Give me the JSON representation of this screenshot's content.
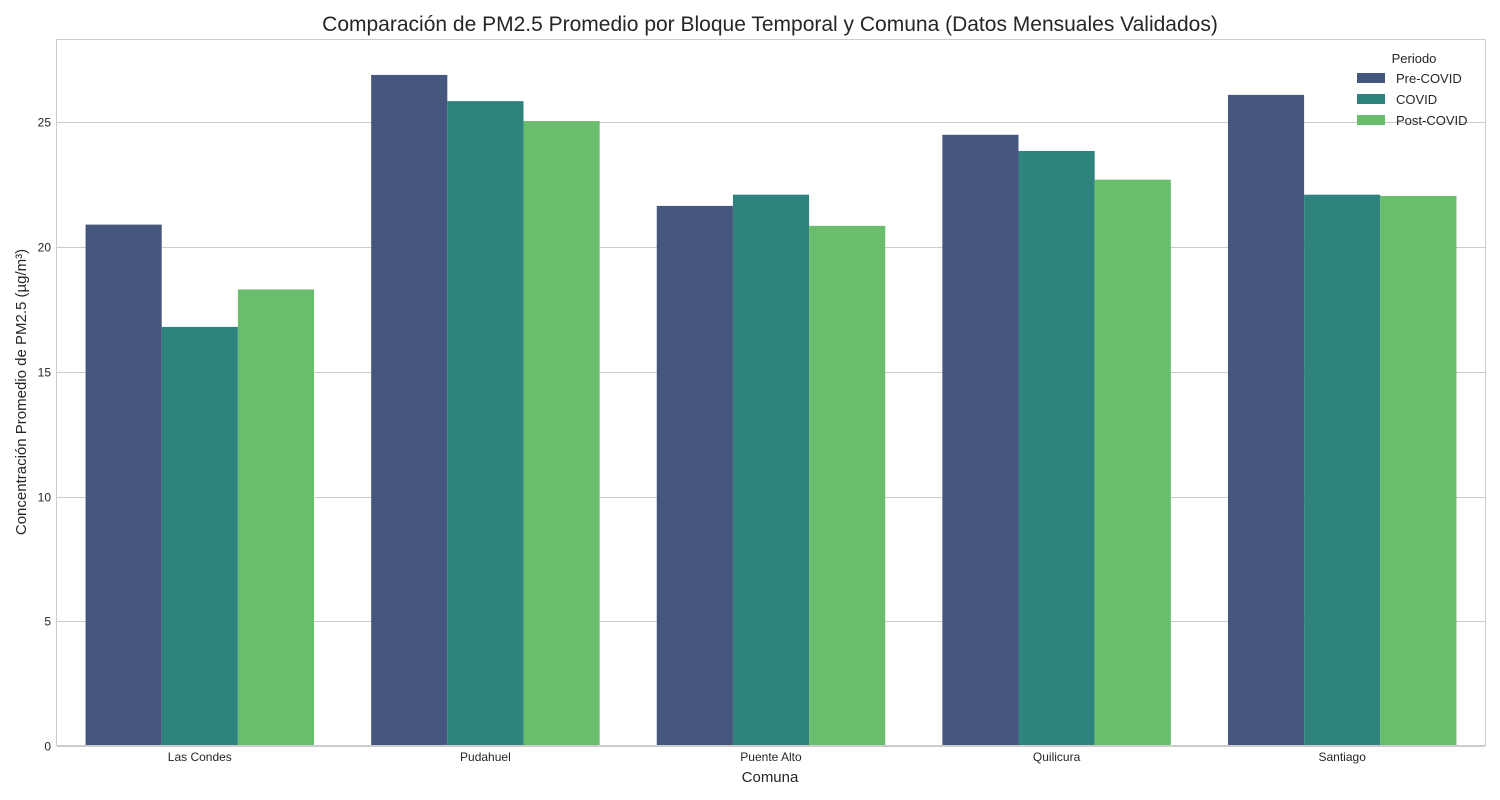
{
  "chart_data": {
    "type": "bar",
    "title": "Comparación de PM2.5 Promedio por Bloque Temporal y Comuna (Datos Mensuales Validados)",
    "xlabel": "Comuna",
    "ylabel": "Concentración Promedio de PM2.5 (µg/m³)",
    "ylim": [
      0,
      28.3
    ],
    "yticks": [
      0,
      5,
      10,
      15,
      20,
      25
    ],
    "grid": true,
    "legend": {
      "title": "Periodo",
      "placement": "top-right"
    },
    "categories": [
      "Las Condes",
      "Pudahuel",
      "Puente Alto",
      "Quilicura",
      "Santiago"
    ],
    "series": [
      {
        "name": "Pre-COVID",
        "color": "#46577f",
        "values": [
          20.9,
          26.9,
          21.65,
          24.5,
          26.1
        ]
      },
      {
        "name": "COVID",
        "color": "#2e837e",
        "values": [
          16.8,
          25.85,
          22.1,
          23.85,
          22.1
        ]
      },
      {
        "name": "Post-COVID",
        "color": "#6bbd6e",
        "values": [
          18.3,
          25.05,
          20.85,
          22.7,
          22.05
        ]
      }
    ]
  }
}
